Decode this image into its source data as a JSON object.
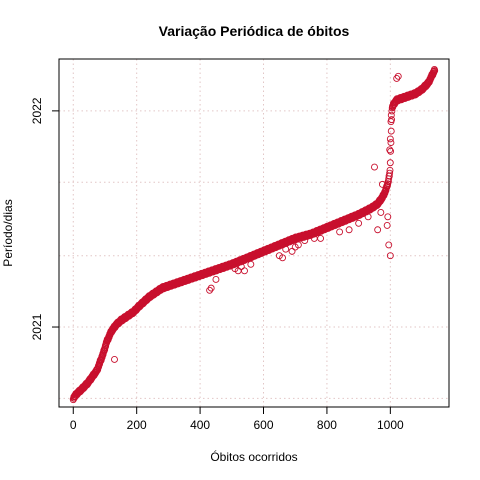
{
  "chart_data": {
    "type": "scatter",
    "title": "Variação Periódica de óbitos",
    "xlabel": "Óbitos ocorridos",
    "ylabel": "Período/dias",
    "xlim": [
      -45,
      1185
    ],
    "ylim": [
      2020.63,
      2022.24
    ],
    "xticks": [
      0,
      200,
      400,
      600,
      800,
      1000
    ],
    "xtick_labels": [
      "0",
      "200",
      "400",
      "600",
      "800",
      "1000"
    ],
    "yticks": [
      2021,
      2022
    ],
    "ytick_labels": [
      "2021",
      "2022"
    ],
    "x_grid": [
      0,
      200,
      400,
      600,
      800,
      1000
    ],
    "y_grid": [
      2020.67,
      2021,
      2021.33,
      2021.67,
      2022
    ],
    "grid": true,
    "legend": "none",
    "marker": "open-circle",
    "point_color": "#C8102E",
    "point_count": 1140,
    "series": [
      {
        "points": [
          [
            0,
            2020.67
          ],
          [
            10,
            2020.69
          ],
          [
            25,
            2020.71
          ],
          [
            45,
            2020.74
          ],
          [
            60,
            2020.77
          ],
          [
            75,
            2020.8
          ],
          [
            85,
            2020.84
          ],
          [
            95,
            2020.88
          ],
          [
            105,
            2020.93
          ],
          [
            120,
            2020.98
          ],
          [
            135,
            2021.01
          ],
          [
            150,
            2021.03
          ],
          [
            170,
            2021.05
          ],
          [
            190,
            2021.07
          ],
          [
            210,
            2021.1
          ],
          [
            225,
            2021.12
          ],
          [
            240,
            2021.14
          ],
          [
            260,
            2021.16
          ],
          [
            280,
            2021.18
          ],
          [
            300,
            2021.19
          ],
          [
            340,
            2021.21
          ],
          [
            380,
            2021.23
          ],
          [
            420,
            2021.25
          ],
          [
            460,
            2021.27
          ],
          [
            500,
            2021.29
          ],
          [
            550,
            2021.32
          ],
          [
            600,
            2021.35
          ],
          [
            650,
            2021.38
          ],
          [
            700,
            2021.41
          ],
          [
            750,
            2021.43
          ],
          [
            800,
            2021.46
          ],
          [
            850,
            2021.49
          ],
          [
            900,
            2021.52
          ],
          [
            940,
            2021.55
          ],
          [
            960,
            2021.57
          ],
          [
            975,
            2021.6
          ],
          [
            985,
            2021.63
          ],
          [
            993,
            2021.67
          ],
          [
            999,
            2021.72
          ],
          [
            1005,
            2022.01
          ],
          [
            1010,
            2022.03
          ],
          [
            1020,
            2022.05
          ],
          [
            1040,
            2022.06
          ],
          [
            1060,
            2022.07
          ],
          [
            1080,
            2022.08
          ],
          [
            1100,
            2022.1
          ],
          [
            1120,
            2022.13
          ],
          [
            1130,
            2022.16
          ],
          [
            1140,
            2022.19
          ]
        ]
      }
    ],
    "outliers": [
      [
        130,
        2020.85
      ],
      [
        430,
        2021.17
      ],
      [
        435,
        2021.18
      ],
      [
        450,
        2021.22
      ],
      [
        510,
        2021.27
      ],
      [
        520,
        2021.26
      ],
      [
        530,
        2021.28
      ],
      [
        540,
        2021.26
      ],
      [
        560,
        2021.29
      ],
      [
        650,
        2021.33
      ],
      [
        660,
        2021.32
      ],
      [
        670,
        2021.36
      ],
      [
        690,
        2021.35
      ],
      [
        700,
        2021.37
      ],
      [
        710,
        2021.38
      ],
      [
        730,
        2021.4
      ],
      [
        760,
        2021.41
      ],
      [
        780,
        2021.41
      ],
      [
        840,
        2021.44
      ],
      [
        870,
        2021.45
      ],
      [
        900,
        2021.48
      ],
      [
        930,
        2021.51
      ],
      [
        950,
        2021.74
      ],
      [
        960,
        2021.45
      ],
      [
        970,
        2021.53
      ],
      [
        975,
        2021.66
      ],
      [
        990,
        2021.47
      ],
      [
        992,
        2021.51
      ],
      [
        995,
        2021.38
      ],
      [
        998,
        2021.82
      ],
      [
        1000,
        2021.33
      ],
      [
        1000,
        2021.87
      ],
      [
        1002,
        2021.95
      ],
      [
        1003,
        2021.98
      ],
      [
        1025,
        2022.16
      ],
      [
        1020,
        2022.15
      ]
    ]
  }
}
